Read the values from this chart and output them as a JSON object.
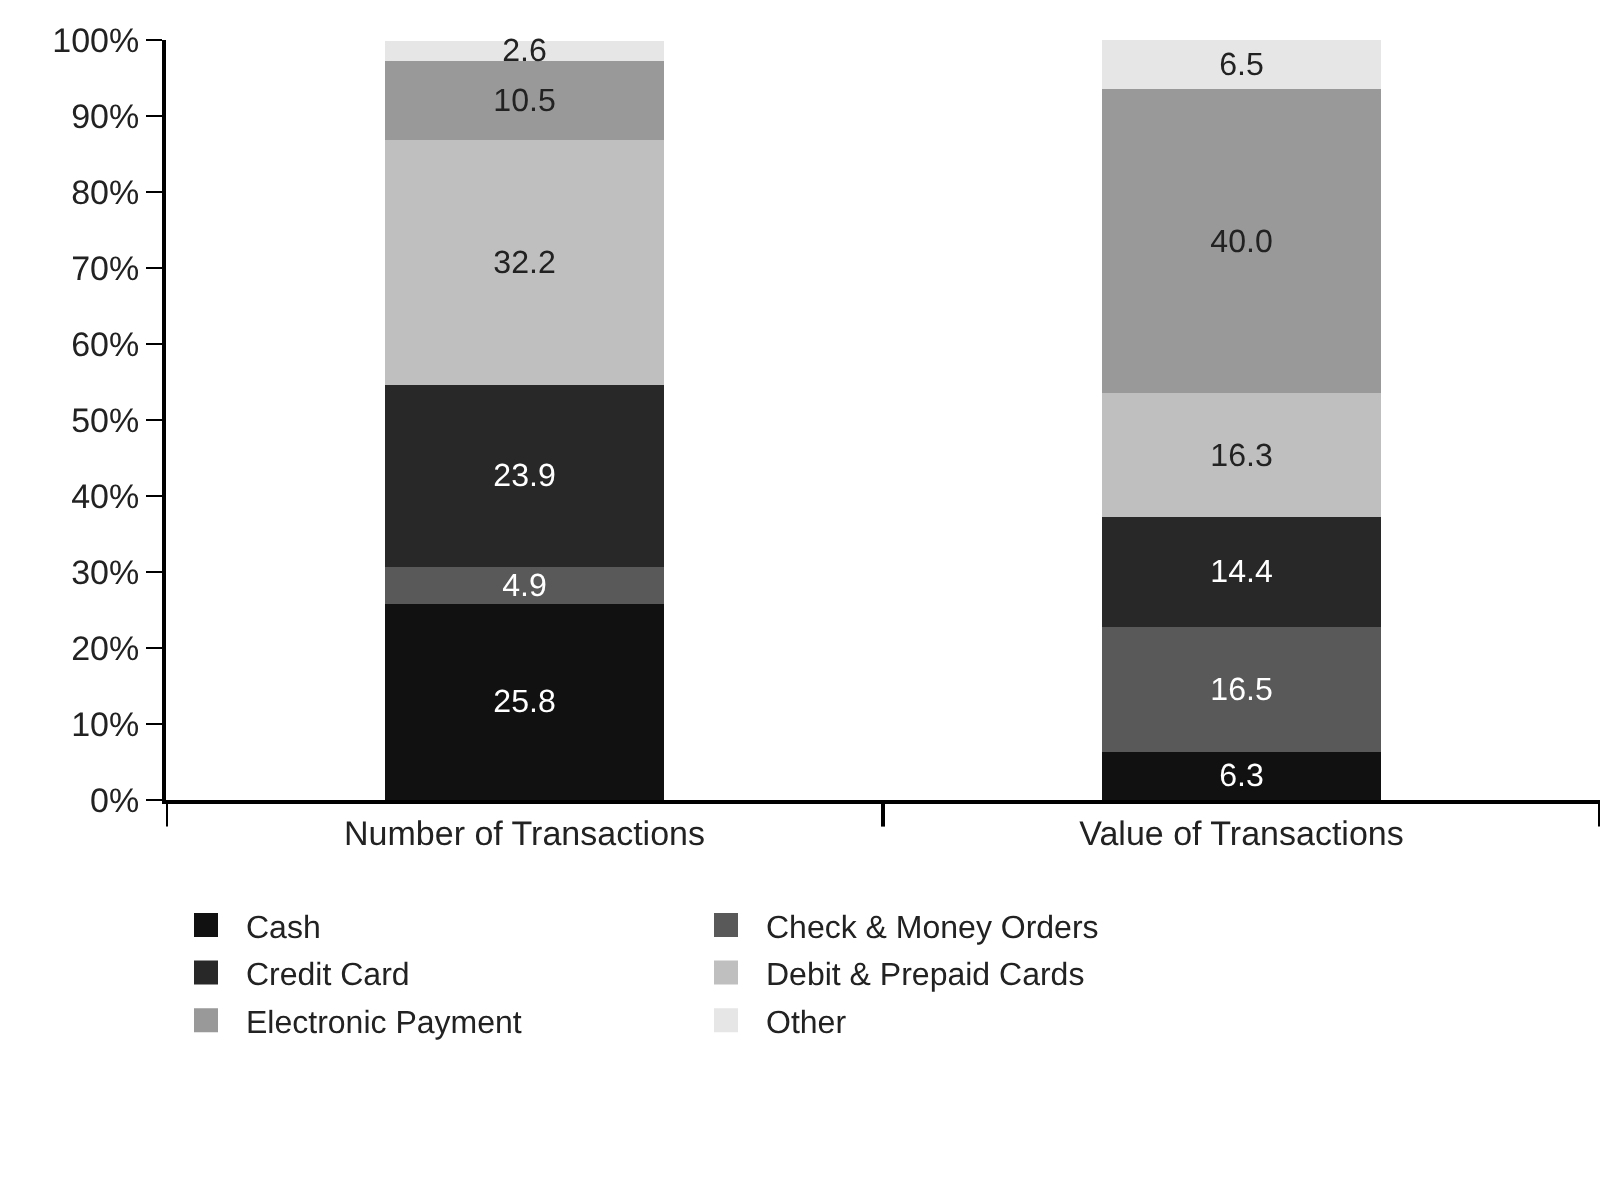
{
  "chart_data": {
    "type": "bar",
    "stacked": true,
    "categories": [
      "Number of Transactions",
      "Value of Transactions"
    ],
    "series": [
      {
        "name": "Cash",
        "color": "#111111",
        "values": [
          25.8,
          6.3
        ]
      },
      {
        "name": "Check & Money Orders",
        "color": "#595959",
        "values": [
          4.9,
          16.5
        ]
      },
      {
        "name": "Credit Card",
        "color": "#282828",
        "values": [
          23.9,
          14.4
        ]
      },
      {
        "name": "Debit & Prepaid Cards",
        "color": "#bfbfbf",
        "values": [
          32.2,
          16.3
        ]
      },
      {
        "name": "Electronic Payment",
        "color": "#999999",
        "values": [
          10.5,
          40.0
        ],
        "value_labels": [
          "10.5",
          "40.0"
        ]
      },
      {
        "name": "Other",
        "color": "#e6e6e6",
        "values": [
          2.6,
          6.5
        ]
      }
    ],
    "ylim": [
      0,
      100
    ],
    "yticks": [
      {
        "value": 0,
        "label": "0%"
      },
      {
        "value": 10,
        "label": "10%"
      },
      {
        "value": 20,
        "label": "20%"
      },
      {
        "value": 30,
        "label": "30%"
      },
      {
        "value": 40,
        "label": "40%"
      },
      {
        "value": 50,
        "label": "50%"
      },
      {
        "value": 60,
        "label": "60%"
      },
      {
        "value": 70,
        "label": "70%"
      },
      {
        "value": 80,
        "label": "80%"
      },
      {
        "value": 90,
        "label": "90%"
      },
      {
        "value": 100,
        "label": "100%"
      }
    ],
    "data_labels": true,
    "legend": "bottom"
  }
}
